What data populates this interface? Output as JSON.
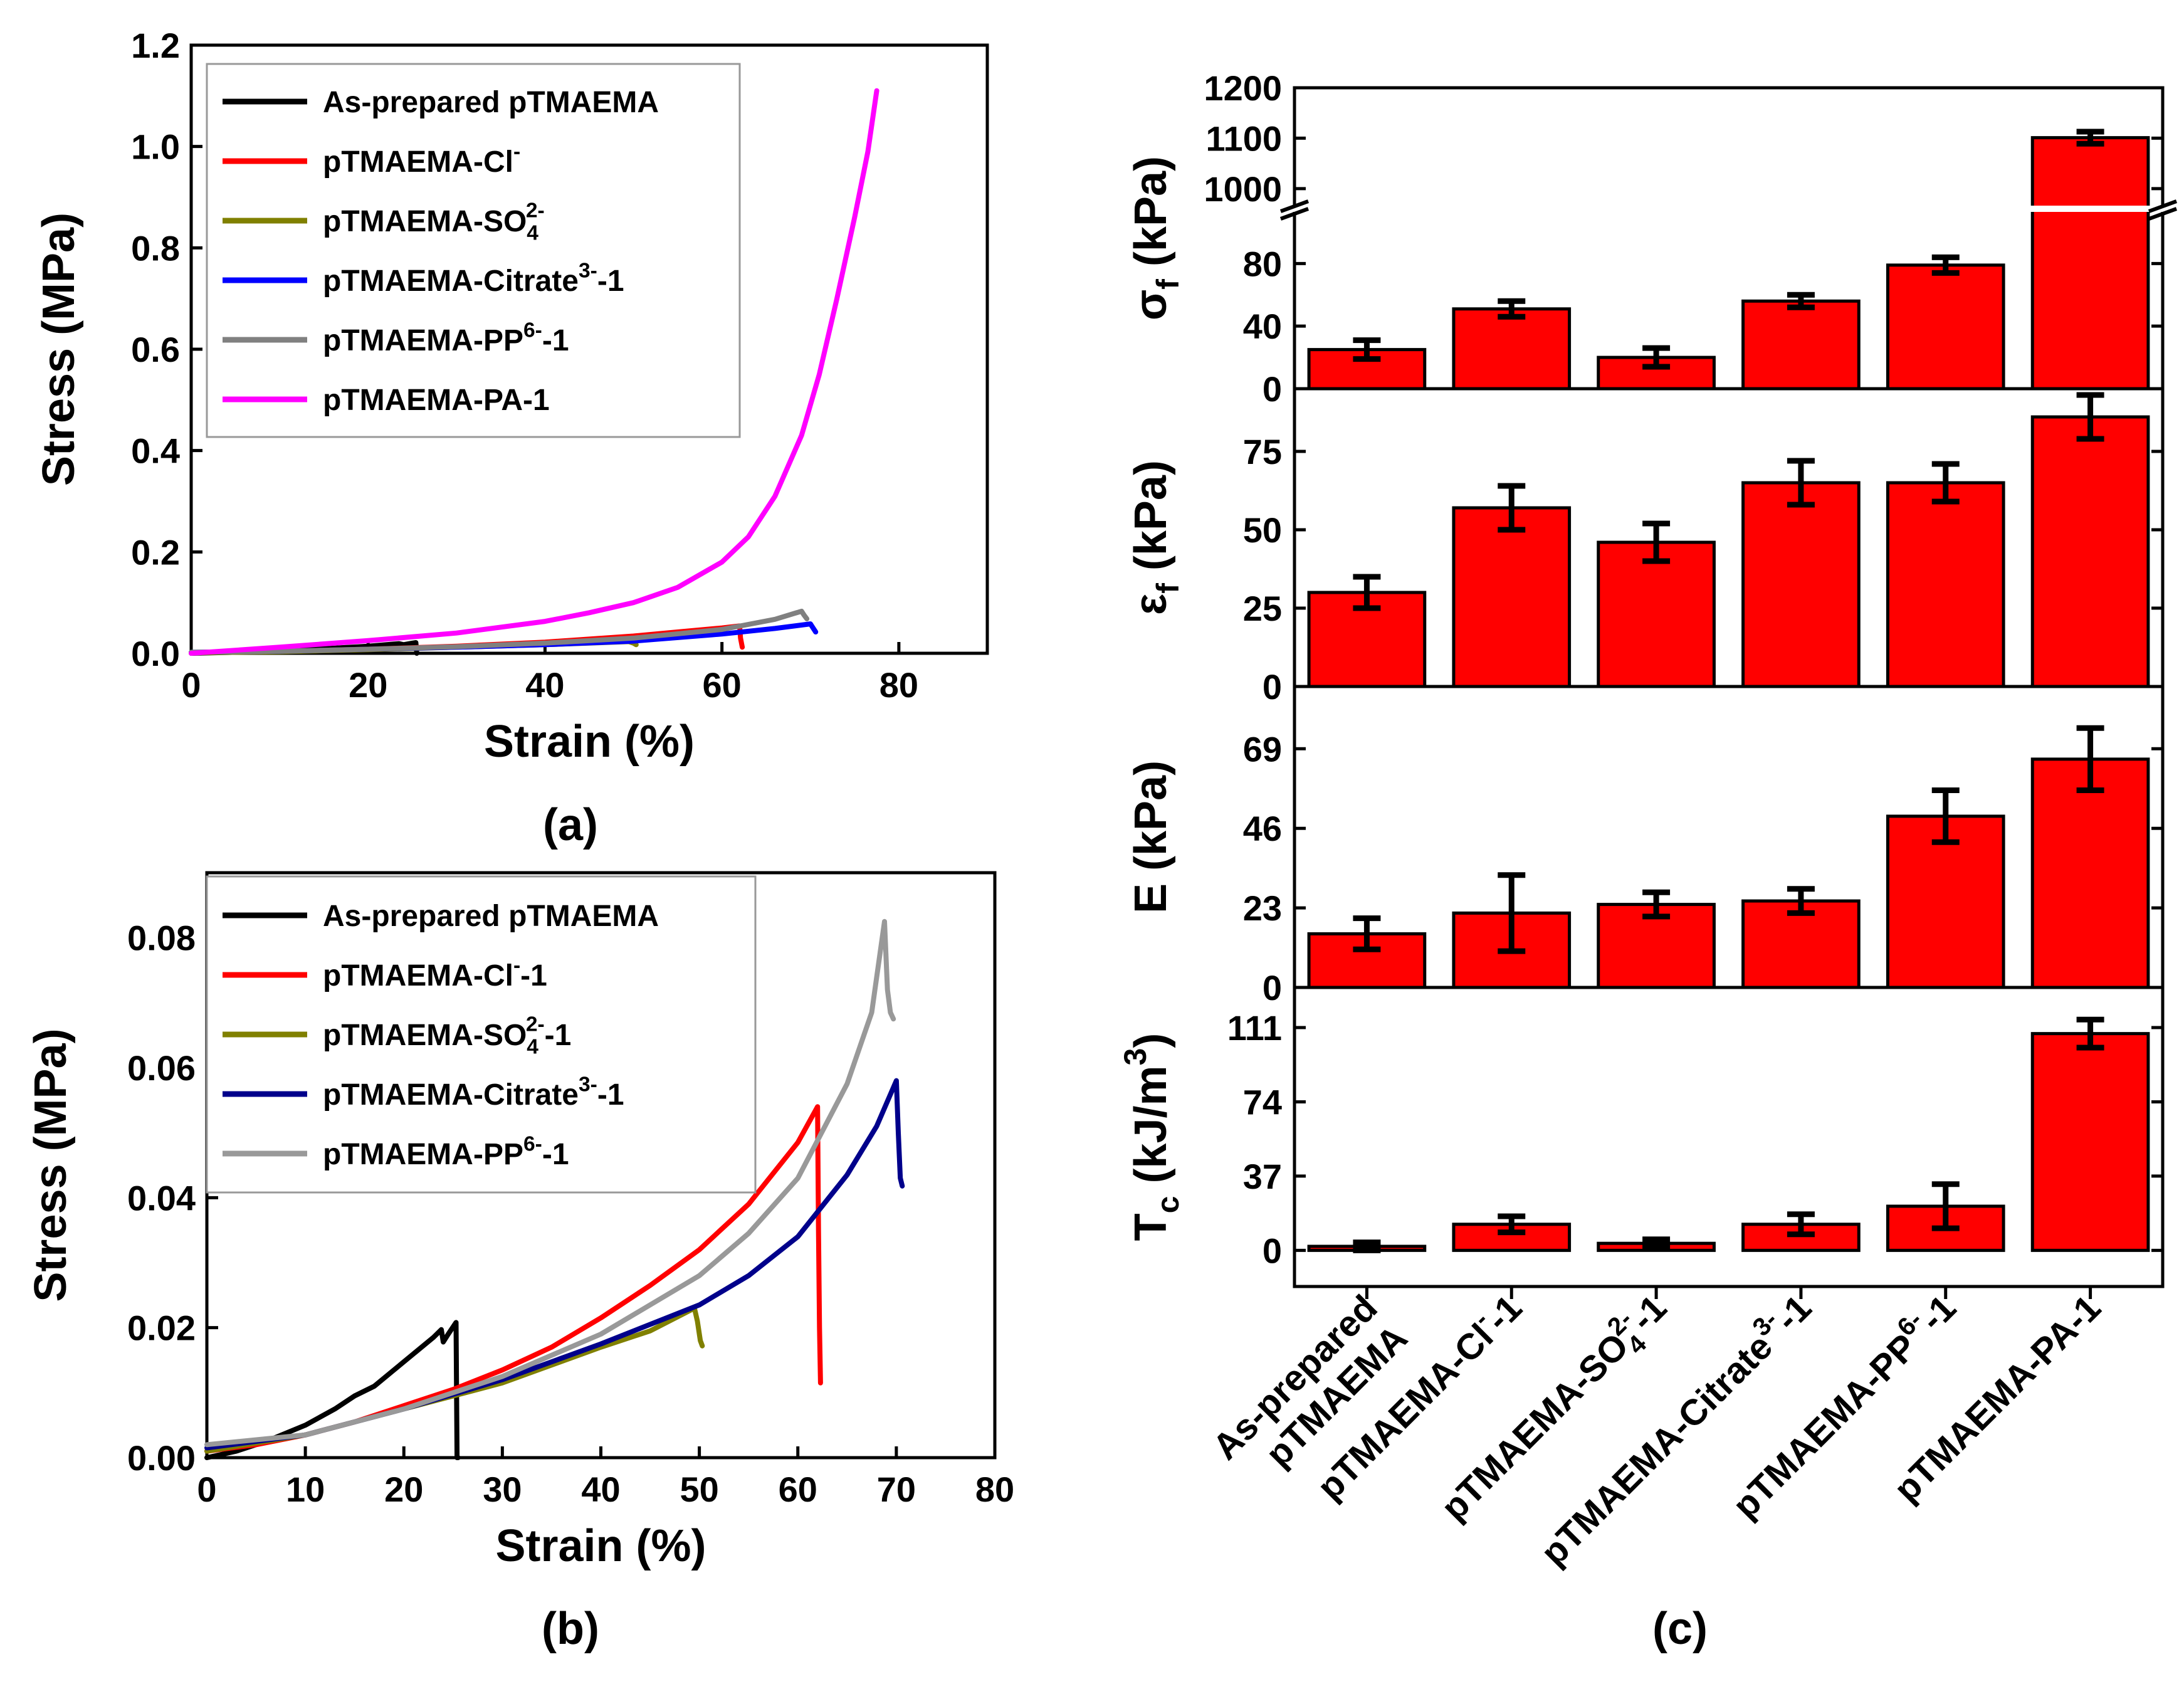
{
  "chart_data": [
    {
      "id": "a",
      "type": "line",
      "panel_label": "(a)",
      "xlabel": "Strain (%)",
      "ylabel": "Stress (MPa)",
      "xlim": [
        0,
        90
      ],
      "ylim": [
        0,
        1.2
      ],
      "xticks": [
        0,
        20,
        40,
        60,
        80
      ],
      "yticks": [
        0.0,
        0.2,
        0.4,
        0.6,
        0.8,
        1.0,
        1.2
      ],
      "xtick_labels": [
        "0",
        "20",
        "40",
        "60",
        "80"
      ],
      "ytick_labels": [
        "0.0",
        "0.2",
        "0.4",
        "0.6",
        "0.8",
        "1.0",
        "1.2"
      ],
      "legend_position": "top-left",
      "series": [
        {
          "name": "As-prepared pTMAEMA",
          "label_main": "As-prepared pTMAEMA",
          "label_sup": "",
          "label_sub": "",
          "label_tail": "",
          "color": "#000000",
          "points": [
            [
              0,
              0
            ],
            [
              5,
              0.002
            ],
            [
              10,
              0.005
            ],
            [
              15,
              0.009
            ],
            [
              20,
              0.014
            ],
            [
              23.5,
              0.019
            ],
            [
              24,
              0.017
            ],
            [
              25,
              0.02
            ],
            [
              25.4,
              0.021
            ],
            [
              25.5,
              0
            ]
          ]
        },
        {
          "name": "pTMAEMA-Cl-",
          "label_main": "pTMAEMA-Cl",
          "label_sup": "-",
          "label_sub": "",
          "label_tail": "",
          "color": "#ff0000",
          "points": [
            [
              0,
              0.001
            ],
            [
              10,
              0.004
            ],
            [
              20,
              0.008
            ],
            [
              30,
              0.014
            ],
            [
              40,
              0.022
            ],
            [
              50,
              0.034
            ],
            [
              55,
              0.042
            ],
            [
              60,
              0.05
            ],
            [
              62,
              0.054
            ],
            [
              62.1,
              0.03
            ],
            [
              62.3,
              0.012
            ]
          ]
        },
        {
          "name": "pTMAEMA-SO42-",
          "label_main": "pTMAEMA-SO",
          "label_sup": "2-",
          "label_sub": "4",
          "label_tail": "",
          "color": "#808000",
          "points": [
            [
              0,
              0.001
            ],
            [
              10,
              0.003
            ],
            [
              20,
              0.007
            ],
            [
              30,
              0.012
            ],
            [
              40,
              0.017
            ],
            [
              45,
              0.02
            ],
            [
              49.5,
              0.023
            ],
            [
              50,
              0.02
            ],
            [
              50.3,
              0.017
            ]
          ]
        },
        {
          "name": "pTMAEMA-Citrate3--1",
          "label_main": "pTMAEMA-Citrate",
          "label_sup": "3-",
          "label_sub": "",
          "label_tail": "-1",
          "color": "#0000ff",
          "points": [
            [
              0,
              0.002
            ],
            [
              10,
              0.004
            ],
            [
              20,
              0.008
            ],
            [
              30,
              0.012
            ],
            [
              40,
              0.017
            ],
            [
              50,
              0.024
            ],
            [
              60,
              0.038
            ],
            [
              66,
              0.049
            ],
            [
              70,
              0.058
            ],
            [
              70.3,
              0.05
            ],
            [
              70.6,
              0.042
            ]
          ]
        },
        {
          "name": "pTMAEMA-PP6--1",
          "label_main": "pTMAEMA-PP",
          "label_sup": "6-",
          "label_sub": "",
          "label_tail": "-1",
          "color": "#808080",
          "points": [
            [
              0,
              0.002
            ],
            [
              10,
              0.004
            ],
            [
              20,
              0.008
            ],
            [
              30,
              0.013
            ],
            [
              40,
              0.02
            ],
            [
              50,
              0.03
            ],
            [
              60,
              0.047
            ],
            [
              66,
              0.067
            ],
            [
              69,
              0.083
            ],
            [
              69.3,
              0.075
            ],
            [
              69.6,
              0.068
            ]
          ]
        },
        {
          "name": "pTMAEMA-PA-1",
          "label_main": "pTMAEMA-PA-1",
          "label_sup": "",
          "label_sub": "",
          "label_tail": "",
          "color": "#ff00ff",
          "points": [
            [
              0,
              0
            ],
            [
              10,
              0.012
            ],
            [
              20,
              0.025
            ],
            [
              30,
              0.04
            ],
            [
              40,
              0.063
            ],
            [
              45,
              0.08
            ],
            [
              50,
              0.1
            ],
            [
              55,
              0.13
            ],
            [
              60,
              0.18
            ],
            [
              63,
              0.23
            ],
            [
              66,
              0.31
            ],
            [
              69,
              0.43
            ],
            [
              71,
              0.55
            ],
            [
              73,
              0.7
            ],
            [
              75,
              0.86
            ],
            [
              76.5,
              0.99
            ],
            [
              77.5,
              1.11
            ]
          ]
        }
      ]
    },
    {
      "id": "b",
      "type": "line",
      "panel_label": "(b)",
      "xlabel": "Strain (%)",
      "ylabel": "Stress (MPa)",
      "xlim": [
        0,
        80
      ],
      "ylim": [
        0,
        0.09
      ],
      "xticks": [
        0,
        10,
        20,
        30,
        40,
        50,
        60,
        70,
        80
      ],
      "yticks": [
        0.0,
        0.02,
        0.04,
        0.06,
        0.08
      ],
      "xtick_labels": [
        "0",
        "10",
        "20",
        "30",
        "40",
        "50",
        "60",
        "70",
        "80"
      ],
      "ytick_labels": [
        "0.00",
        "0.02",
        "0.04",
        "0.06",
        "0.08"
      ],
      "legend_position": "top-left",
      "series": [
        {
          "name": "As-prepared pTMAEMA",
          "label_main": "As-prepared pTMAEMA",
          "label_sup": "",
          "label_sub": "",
          "label_tail": "",
          "color": "#000000",
          "points": [
            [
              0,
              0
            ],
            [
              3,
              0.001
            ],
            [
              6,
              0.0025
            ],
            [
              10,
              0.005
            ],
            [
              13,
              0.0075
            ],
            [
              15,
              0.0095
            ],
            [
              17,
              0.011
            ],
            [
              19,
              0.0135
            ],
            [
              21,
              0.016
            ],
            [
              23,
              0.0185
            ],
            [
              23.8,
              0.0197
            ],
            [
              24,
              0.0178
            ],
            [
              24.5,
              0.019
            ],
            [
              25.3,
              0.0208
            ],
            [
              25.4,
              0
            ],
            [
              25.5,
              0
            ]
          ]
        },
        {
          "name": "pTMAEMA-Cl--1",
          "label_main": "pTMAEMA-Cl",
          "label_sup": "-",
          "label_sub": "",
          "label_tail": "-1",
          "color": "#ff0000",
          "points": [
            [
              0,
              0.001
            ],
            [
              5,
              0.002
            ],
            [
              10,
              0.0035
            ],
            [
              15,
              0.0055
            ],
            [
              20,
              0.008
            ],
            [
              25,
              0.0105
            ],
            [
              30,
              0.0135
            ],
            [
              35,
              0.017
            ],
            [
              40,
              0.0215
            ],
            [
              45,
              0.0265
            ],
            [
              50,
              0.032
            ],
            [
              55,
              0.039
            ],
            [
              60,
              0.0485
            ],
            [
              62,
              0.054
            ],
            [
              62.1,
              0.035
            ],
            [
              62.2,
              0.02
            ],
            [
              62.3,
              0.0115
            ]
          ]
        },
        {
          "name": "pTMAEMA-SO42--1",
          "label_main": "pTMAEMA-SO",
          "label_sup": "2-",
          "label_sub": "4",
          "label_tail": "-1",
          "color": "#808000",
          "points": [
            [
              0,
              0.001
            ],
            [
              10,
              0.0035
            ],
            [
              20,
              0.0075
            ],
            [
              30,
              0.0115
            ],
            [
              40,
              0.017
            ],
            [
              45,
              0.0195
            ],
            [
              49.5,
              0.023
            ],
            [
              49.8,
              0.021
            ],
            [
              50.1,
              0.018
            ],
            [
              50.3,
              0.0172
            ]
          ]
        },
        {
          "name": "pTMAEMA-Citrate3--1",
          "label_main": "pTMAEMA-Citrate",
          "label_sup": "3-",
          "label_sub": "",
          "label_tail": "-1",
          "color": "#00008b",
          "points": [
            [
              0,
              0.0015
            ],
            [
              10,
              0.0035
            ],
            [
              20,
              0.0075
            ],
            [
              30,
              0.012
            ],
            [
              40,
              0.0175
            ],
            [
              50,
              0.0235
            ],
            [
              55,
              0.028
            ],
            [
              60,
              0.034
            ],
            [
              65,
              0.0435
            ],
            [
              68,
              0.051
            ],
            [
              70,
              0.058
            ],
            [
              70.2,
              0.05
            ],
            [
              70.4,
              0.043
            ],
            [
              70.6,
              0.0418
            ]
          ]
        },
        {
          "name": "pTMAEMA-PP6--1",
          "label_main": "pTMAEMA-PP",
          "label_sup": "6-",
          "label_sub": "",
          "label_tail": "-1",
          "color": "#999999",
          "points": [
            [
              0,
              0.002
            ],
            [
              10,
              0.0035
            ],
            [
              20,
              0.0075
            ],
            [
              30,
              0.0125
            ],
            [
              40,
              0.019
            ],
            [
              50,
              0.028
            ],
            [
              55,
              0.0345
            ],
            [
              60,
              0.043
            ],
            [
              65,
              0.0575
            ],
            [
              67.5,
              0.0685
            ],
            [
              68.8,
              0.0825
            ],
            [
              69.1,
              0.072
            ],
            [
              69.4,
              0.0685
            ],
            [
              69.7,
              0.0675
            ]
          ]
        }
      ]
    },
    {
      "id": "c",
      "type": "bar",
      "panel_label": "(c)",
      "bar_color": "#ff0000",
      "categories": [
        {
          "name": "As-prepared pTMAEMA",
          "line1": "As-prepared",
          "line2": "pTMAEMA",
          "main": "",
          "sup": "",
          "sub": "",
          "tail": ""
        },
        {
          "name": "pTMAEMA-Cl--1",
          "line1": "",
          "line2": "",
          "main": "pTMAEMA-Cl",
          "sup": "-",
          "sub": "",
          "tail": "-1"
        },
        {
          "name": "pTMAEMA-SO42--1",
          "line1": "",
          "line2": "",
          "main": "pTMAEMA-SO",
          "sup": "2-",
          "sub": "4",
          "tail": "-1"
        },
        {
          "name": "pTMAEMA-Citrate3--1",
          "line1": "",
          "line2": "",
          "main": "pTMAEMA-Citrate",
          "sup": "3-",
          "sub": "",
          "tail": "-1"
        },
        {
          "name": "pTMAEMA-PP6--1",
          "line1": "",
          "line2": "",
          "main": "pTMAEMA-PP",
          "sup": "6-",
          "sub": "",
          "tail": "-1"
        },
        {
          "name": "pTMAEMA-PA-1",
          "line1": "",
          "line2": "",
          "main": "pTMAEMA-PA-1",
          "sup": "",
          "sub": "",
          "tail": ""
        }
      ],
      "subplots": [
        {
          "id": "sigma",
          "ylabel_main": "σ",
          "ylabel_sub": "f",
          "ylabel_tail": " (kPa)",
          "broken_axis": true,
          "lower_range": [
            0,
            115
          ],
          "upper_range": [
            960,
            1200
          ],
          "lower_ticks": [
            0,
            40,
            80
          ],
          "upper_ticks": [
            1000,
            1100,
            1200
          ],
          "lower_tick_labels": [
            "0",
            "40",
            "80"
          ],
          "upper_tick_labels": [
            "1000",
            "1100",
            "1200"
          ],
          "values": [
            25,
            51,
            20,
            56,
            79,
            1101
          ],
          "errors": [
            6,
            5,
            6,
            4,
            5,
            12
          ]
        },
        {
          "id": "epsilon",
          "ylabel_main": "ε",
          "ylabel_sub": "f",
          "ylabel_tail": " (kPa)",
          "ylim": [
            0,
            95
          ],
          "yticks": [
            0,
            25,
            50,
            75
          ],
          "ytick_labels": [
            "0",
            "25",
            "50",
            "75"
          ],
          "values": [
            30,
            57,
            46,
            65,
            65,
            86
          ],
          "errors": [
            5,
            7,
            6,
            7,
            6,
            7
          ]
        },
        {
          "id": "modulus",
          "ylabel_main": "E",
          "ylabel_sub": "",
          "ylabel_tail": " (kPa)",
          "ylim": [
            0,
            87
          ],
          "yticks": [
            0,
            23,
            46,
            69
          ],
          "ytick_labels": [
            "0",
            "23",
            "46",
            "69"
          ],
          "values": [
            15.5,
            21.5,
            24,
            25,
            49.5,
            66
          ],
          "errors": [
            4.5,
            11,
            3.5,
            3.5,
            7.5,
            9
          ]
        },
        {
          "id": "toughness",
          "ylabel_main": "T",
          "ylabel_sub": "c",
          "ylabel_tail": " (kJ/m",
          "ylabel_sup": "3",
          "ylabel_end": ")",
          "ylim": [
            -18,
            131
          ],
          "yticks": [
            0,
            37,
            74,
            111
          ],
          "ytick_labels": [
            "0",
            "37",
            "74",
            "111"
          ],
          "values": [
            2,
            13,
            3.5,
            13,
            22,
            108
          ],
          "errors": [
            2,
            4,
            2,
            5,
            11,
            7
          ]
        }
      ]
    }
  ]
}
